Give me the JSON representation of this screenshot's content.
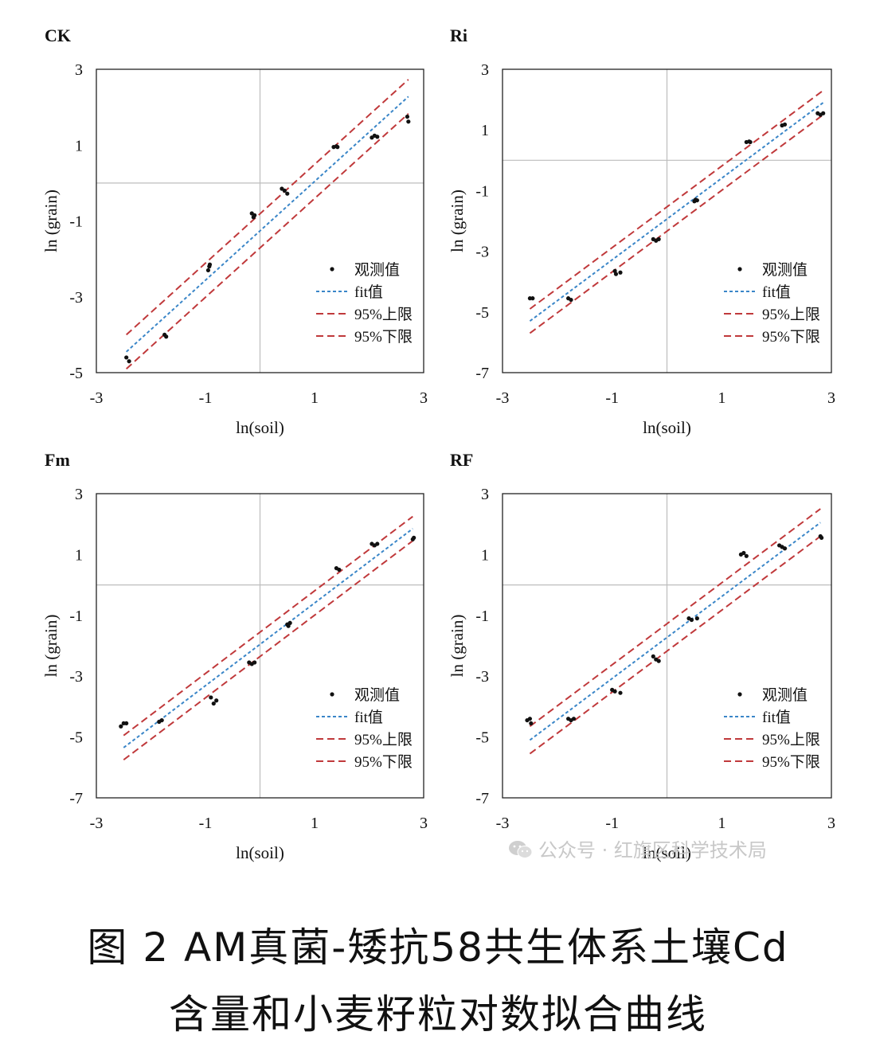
{
  "caption": {
    "line1": "图 2 AM真菌-矮抗58共生体系土壤Cd",
    "line2": "含量和小麦籽粒对数拟合曲线"
  },
  "watermark": "公众号 · 红旗区科学技术局",
  "legend": {
    "observed": "观测值",
    "fit": "fit值",
    "upper": "95%上限",
    "lower": "95%下限"
  },
  "colors": {
    "fit": "#3a86c8",
    "ci": "#c0393b",
    "points": "#111111",
    "ref_lines": "#bdbdbd"
  },
  "chart_data": [
    {
      "type": "scatter",
      "title": "CK",
      "xlabel": "ln(soil)",
      "ylabel": "ln (grain)",
      "xlim": [
        -3,
        3
      ],
      "ylim": [
        -5,
        3
      ],
      "xticks": [
        -3,
        -1,
        1,
        3
      ],
      "yticks": [
        3,
        1,
        -1,
        -3,
        -5
      ],
      "grid": false,
      "legend_position": "lower-right",
      "points": [
        [
          -2.45,
          -4.6
        ],
        [
          -2.4,
          -4.7
        ],
        [
          -1.75,
          -4.0
        ],
        [
          -1.72,
          -4.05
        ],
        [
          -0.95,
          -2.3
        ],
        [
          -0.93,
          -2.2
        ],
        [
          -0.92,
          -2.15
        ],
        [
          -0.15,
          -0.8
        ],
        [
          -0.12,
          -0.9
        ],
        [
          -0.1,
          -0.85
        ],
        [
          0.4,
          -0.15
        ],
        [
          0.45,
          -0.2
        ],
        [
          0.5,
          -0.28
        ],
        [
          1.35,
          0.95
        ],
        [
          1.4,
          0.97
        ],
        [
          1.42,
          0.95
        ],
        [
          2.05,
          1.2
        ],
        [
          2.1,
          1.25
        ],
        [
          2.15,
          1.22
        ],
        [
          2.7,
          1.75
        ],
        [
          2.72,
          1.62
        ]
      ],
      "fit": {
        "x": [
          -2.45,
          2.72
        ],
        "y": [
          -4.45,
          2.28
        ]
      },
      "upper": {
        "x": [
          -2.45,
          2.72
        ],
        "y": [
          -4.0,
          2.73
        ]
      },
      "lower": {
        "x": [
          -2.45,
          2.72
        ],
        "y": [
          -4.9,
          1.83
        ]
      }
    },
    {
      "type": "scatter",
      "title": "Ri",
      "xlabel": "ln(soil)",
      "ylabel": "ln (grain)",
      "xlim": [
        -3,
        3
      ],
      "ylim": [
        -7,
        3
      ],
      "xticks": [
        -3,
        -1,
        1,
        3
      ],
      "yticks": [
        3,
        1,
        -1,
        -3,
        -5,
        -7
      ],
      "grid": false,
      "legend_position": "lower-right",
      "points": [
        [
          -2.5,
          -4.55
        ],
        [
          -2.45,
          -4.55
        ],
        [
          -1.8,
          -4.55
        ],
        [
          -1.75,
          -4.6
        ],
        [
          -0.95,
          -3.65
        ],
        [
          -0.93,
          -3.75
        ],
        [
          -0.85,
          -3.7
        ],
        [
          -0.25,
          -2.6
        ],
        [
          -0.2,
          -2.65
        ],
        [
          -0.15,
          -2.6
        ],
        [
          0.5,
          -1.35
        ],
        [
          0.52,
          -1.3
        ],
        [
          0.55,
          -1.32
        ],
        [
          1.45,
          0.6
        ],
        [
          1.5,
          0.62
        ],
        [
          1.52,
          0.6
        ],
        [
          2.1,
          1.15
        ],
        [
          2.15,
          1.18
        ],
        [
          2.75,
          1.55
        ],
        [
          2.8,
          1.5
        ],
        [
          2.85,
          1.55
        ]
      ],
      "fit": {
        "x": [
          -2.5,
          2.85
        ],
        "y": [
          -5.3,
          1.9
        ]
      },
      "upper": {
        "x": [
          -2.5,
          2.85
        ],
        "y": [
          -4.9,
          2.3
        ]
      },
      "lower": {
        "x": [
          -2.5,
          2.85
        ],
        "y": [
          -5.7,
          1.5
        ]
      }
    },
    {
      "type": "scatter",
      "title": "Fm",
      "xlabel": "ln(soil)",
      "ylabel": "ln (grain)",
      "xlim": [
        -3,
        3
      ],
      "ylim": [
        -7,
        3
      ],
      "xticks": [
        -3,
        -1,
        1,
        3
      ],
      "yticks": [
        3,
        1,
        -1,
        -3,
        -5,
        -7
      ],
      "grid": false,
      "legend_position": "lower-right",
      "points": [
        [
          -2.55,
          -4.65
        ],
        [
          -2.5,
          -4.55
        ],
        [
          -2.45,
          -4.55
        ],
        [
          -1.85,
          -4.5
        ],
        [
          -1.8,
          -4.45
        ],
        [
          -0.9,
          -3.7
        ],
        [
          -0.85,
          -3.9
        ],
        [
          -0.8,
          -3.8
        ],
        [
          -0.2,
          -2.55
        ],
        [
          -0.15,
          -2.6
        ],
        [
          -0.1,
          -2.55
        ],
        [
          0.5,
          -1.3
        ],
        [
          0.52,
          -1.35
        ],
        [
          0.55,
          -1.25
        ],
        [
          1.4,
          0.55
        ],
        [
          1.45,
          0.5
        ],
        [
          2.05,
          1.35
        ],
        [
          2.1,
          1.3
        ],
        [
          2.15,
          1.35
        ],
        [
          2.8,
          1.5
        ],
        [
          2.82,
          1.55
        ]
      ],
      "fit": {
        "x": [
          -2.5,
          2.8
        ],
        "y": [
          -5.35,
          1.85
        ]
      },
      "upper": {
        "x": [
          -2.5,
          2.8
        ],
        "y": [
          -4.95,
          2.25
        ]
      },
      "lower": {
        "x": [
          -2.5,
          2.8
        ],
        "y": [
          -5.75,
          1.45
        ]
      }
    },
    {
      "type": "scatter",
      "title": "RF",
      "xlabel": "ln(soil)",
      "ylabel": "ln (grain)",
      "xlim": [
        -3,
        3
      ],
      "ylim": [
        -7,
        3
      ],
      "xticks": [
        -3,
        -1,
        1,
        3
      ],
      "yticks": [
        3,
        1,
        -1,
        -3,
        -5,
        -7
      ],
      "grid": false,
      "legend_position": "lower-right",
      "points": [
        [
          -2.55,
          -4.45
        ],
        [
          -2.5,
          -4.4
        ],
        [
          -2.48,
          -4.55
        ],
        [
          -1.8,
          -4.4
        ],
        [
          -1.75,
          -4.45
        ],
        [
          -1.7,
          -4.4
        ],
        [
          -1.0,
          -3.45
        ],
        [
          -0.95,
          -3.5
        ],
        [
          -0.85,
          -3.55
        ],
        [
          -0.25,
          -2.35
        ],
        [
          -0.2,
          -2.45
        ],
        [
          -0.15,
          -2.5
        ],
        [
          0.4,
          -1.1
        ],
        [
          0.45,
          -1.15
        ],
        [
          0.55,
          -1.1
        ],
        [
          1.35,
          1.0
        ],
        [
          1.4,
          1.05
        ],
        [
          1.45,
          0.95
        ],
        [
          2.05,
          1.3
        ],
        [
          2.1,
          1.25
        ],
        [
          2.15,
          1.2
        ],
        [
          2.8,
          1.6
        ],
        [
          2.82,
          1.55
        ]
      ],
      "fit": {
        "x": [
          -2.5,
          2.8
        ],
        "y": [
          -5.1,
          2.05
        ]
      },
      "upper": {
        "x": [
          -2.5,
          2.8
        ],
        "y": [
          -4.65,
          2.5
        ]
      },
      "lower": {
        "x": [
          -2.5,
          2.8
        ],
        "y": [
          -5.55,
          1.6
        ]
      }
    }
  ]
}
